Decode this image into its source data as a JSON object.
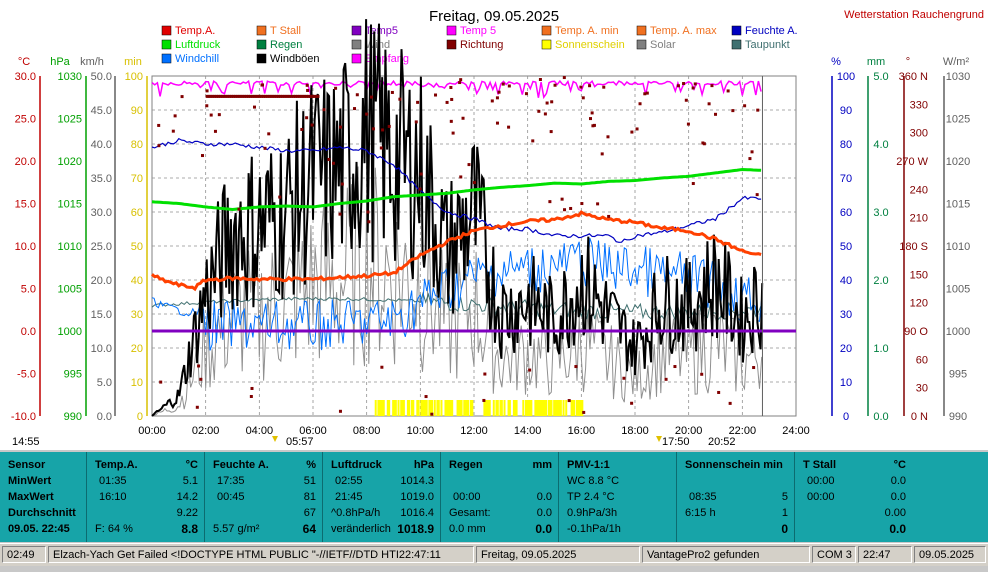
{
  "header": {
    "title": "Freitag, 09.05.2025",
    "station": "Wetterstation Rauchengrund"
  },
  "legend": [
    {
      "label": "Temp.A.",
      "color": "#e00000"
    },
    {
      "label": "T Stall",
      "color": "#f07020"
    },
    {
      "label": "Temp5",
      "color": "#8000c0"
    },
    {
      "label": "Temp 5",
      "color": "#ff00ff"
    },
    {
      "label": "Temp. A. min",
      "color": "#f07020"
    },
    {
      "label": "Temp. A. max",
      "color": "#f07020"
    },
    {
      "label": "Feuchte A.",
      "color": "#0000c0"
    },
    {
      "label": "Luftdruck",
      "color": "#00e000"
    },
    {
      "label": "Regen",
      "color": "#008040"
    },
    {
      "label": "Wind",
      "color": "#808080"
    },
    {
      "label": "Richtung",
      "color": "#800000"
    },
    {
      "label": "Sonnenschein",
      "color": "#ffff00"
    },
    {
      "label": "Solar",
      "color": "#808080"
    },
    {
      "label": "Taupunkt",
      "color": "#407070"
    },
    {
      "label": "Windchill",
      "color": "#0070ff"
    },
    {
      "label": "Windböen",
      "color": "#000000"
    },
    {
      "label": "Empfang",
      "color": "#ff00ff"
    }
  ],
  "axes": {
    "left_units": [
      "°C",
      "hPa",
      "km/h",
      "min"
    ],
    "right_units": [
      "%",
      "mm",
      "°",
      "W/m²"
    ],
    "temp": [
      "30.0",
      "25.0",
      "20.0",
      "15.0",
      "10.0",
      "5.0",
      "0.0",
      "-5.0",
      "-10.0"
    ],
    "hpa": [
      "1030",
      "1025",
      "1020",
      "1015",
      "1010",
      "1005",
      "1000",
      "995",
      "990"
    ],
    "kmh": [
      "50.0",
      "45.0",
      "40.0",
      "35.0",
      "30.0",
      "25.0",
      "20.0",
      "15.0",
      "10.0",
      "5.0",
      "0.0"
    ],
    "min": [
      "100",
      "90",
      "80",
      "70",
      "60",
      "50",
      "40",
      "30",
      "20",
      "10",
      "0"
    ],
    "pct": [
      "100",
      "90",
      "80",
      "70",
      "60",
      "50",
      "40",
      "30",
      "20",
      "10",
      "0"
    ],
    "mm": [
      "5.0",
      "4.0",
      "3.0",
      "2.0",
      "1.0",
      "0.0"
    ],
    "deg": [
      "360 N",
      "330",
      "300",
      "270 W",
      "240",
      "210",
      "180 S",
      "150",
      "120",
      "90 O",
      "60",
      "30",
      "0 N"
    ],
    "wm2": [
      "1030",
      "1025",
      "1020",
      "1015",
      "1010",
      "1005",
      "1000",
      "995",
      "990"
    ],
    "time": [
      "00:00",
      "02:00",
      "04:00",
      "06:00",
      "08:00",
      "10:00",
      "12:00",
      "14:00",
      "16:00",
      "18:00",
      "20:00",
      "22:00",
      "24:00"
    ],
    "markers": {
      "start": "14:55",
      "sunrise": "05:57",
      "sunset_a": "17:50",
      "sunset_b": "20:52"
    }
  },
  "stats": {
    "sensor": {
      "header": "Sensor",
      "min": "MinWert",
      "max": "MaxWert",
      "avg": "Durchschnitt",
      "now": "09.05. 22:45"
    },
    "temp": {
      "header": "Temp.A.",
      "unit": "°C",
      "min_time": "01:35",
      "min": "5.1",
      "max_time": "16:10",
      "max": "14.2",
      "avg": "9.22",
      "extra": "F: 64 %",
      "now": "8.8"
    },
    "hum": {
      "header": "Feuchte A.",
      "unit": "%",
      "min_time": "17:35",
      "min": "51",
      "max_time": "00:45",
      "max": "81",
      "avg": "67",
      "extra": "5.57 g/m²",
      "now": "64"
    },
    "press": {
      "header": "Luftdruck",
      "unit": "hPa",
      "min_time": "02:55",
      "min": "1014.3",
      "max_time": "21:45",
      "max": "1019.0",
      "trend": "^0.8hPa/h",
      "avg": "1016.4",
      "extra": "veränderlich",
      "now": "1018.9"
    },
    "rain": {
      "header": "Regen",
      "unit": "mm",
      "max_time": "00:00",
      "max": "0.0",
      "total_label": "Gesamt:",
      "total": "0.0",
      "extra": "0.0 mm",
      "now": "0.0"
    },
    "pmv": {
      "header": "PMV-1:1",
      "wc": "WC 8.8 °C",
      "tp": "TP 2.4 °C",
      "rate3h": "0.9hPa/3h",
      "rate1h": "-0.1hPa/1h"
    },
    "sun": {
      "header": "Sonnenschein min",
      "max_time": "08:35",
      "max": "5",
      "dur": "6:15 h",
      "avg": "1",
      "now": "0"
    },
    "tstall": {
      "header": "T Stall",
      "unit": "°C",
      "min_time": "00:00",
      "min": "0.0",
      "max_time": "00:00",
      "max": "0.0",
      "avg": "0.00",
      "now": "0.0"
    }
  },
  "statusbar": {
    "time": "02:49",
    "message": "Elzach-Yach Get Failed <!DOCTYPE HTML PUBLIC \"-//IETF//DTD HTI22:47:11",
    "date_label": "Freitag, 09.05.2025",
    "device": "VantagePro2 gefunden",
    "port": "COM 3",
    "clock": "22:47",
    "date": "09.05.2025"
  },
  "chart_data": {
    "type": "line",
    "x_unit": "hours",
    "x_range": [
      0,
      24
    ],
    "series": [
      {
        "name": "Temp.A.",
        "axis": "°C",
        "color": "#ff4000",
        "x": [
          0,
          0.5,
          1,
          1.6,
          2,
          3,
          4,
          5,
          6,
          7,
          8,
          9,
          10,
          11,
          12,
          13,
          14,
          15,
          16,
          17,
          18,
          19,
          20,
          21,
          22,
          22.75
        ],
        "y": [
          6.5,
          5.9,
          5.4,
          5.1,
          6.0,
          6.2,
          6.1,
          6.1,
          6.1,
          6.3,
          6.5,
          6.8,
          8.9,
          10.5,
          11.8,
          12.4,
          12.9,
          13.1,
          13.8,
          13.1,
          12.8,
          12.1,
          11.8,
          10.8,
          9.4,
          8.8
        ]
      },
      {
        "name": "Luftdruck",
        "axis": "hPa",
        "color": "#00e000",
        "x": [
          0,
          1,
          2,
          3,
          4,
          5,
          6,
          7,
          8,
          9,
          10,
          11,
          12,
          13,
          14,
          15,
          16,
          17,
          18,
          19,
          20,
          21,
          22,
          22.75
        ],
        "y": [
          1015.2,
          1015.0,
          1014.6,
          1014.3,
          1014.6,
          1014.7,
          1014.6,
          1015.0,
          1015.3,
          1015.8,
          1016.0,
          1016.2,
          1016.6,
          1016.9,
          1017.1,
          1017.4,
          1017.3,
          1017.6,
          1017.7,
          1018.0,
          1018.2,
          1018.6,
          1019.0,
          1018.9
        ]
      },
      {
        "name": "Feuchte A.",
        "axis": "%",
        "color": "#0000c0",
        "x": [
          0,
          1,
          2,
          3,
          4,
          5,
          6,
          7,
          8,
          9,
          10,
          11,
          12,
          13,
          14,
          15,
          16,
          17,
          17.5,
          18,
          19,
          20,
          21,
          22,
          22.75
        ],
        "y": [
          79,
          81,
          80,
          80,
          79,
          78,
          78,
          79,
          78,
          74,
          66,
          60,
          58,
          55,
          55,
          53,
          53,
          53,
          51,
          53,
          54,
          56,
          58,
          64,
          64
        ]
      },
      {
        "name": "Windböen",
        "axis": "km/h",
        "color": "#000000",
        "x": [
          0,
          1,
          2,
          3,
          4,
          5,
          6,
          7,
          8,
          9,
          10,
          11,
          12,
          13,
          14,
          15,
          16,
          17,
          18,
          19,
          20,
          21,
          22,
          22.75
        ],
        "y": [
          0,
          3,
          18,
          27,
          28,
          30,
          35,
          36,
          42,
          38,
          36,
          24,
          30,
          15,
          17,
          14,
          20,
          15,
          10,
          17,
          16,
          20,
          14,
          18
        ]
      },
      {
        "name": "Temp5",
        "axis": "°C",
        "color": "#8000c0",
        "x": [
          0,
          22.75
        ],
        "y": [
          0.0,
          0.0
        ]
      }
    ]
  }
}
